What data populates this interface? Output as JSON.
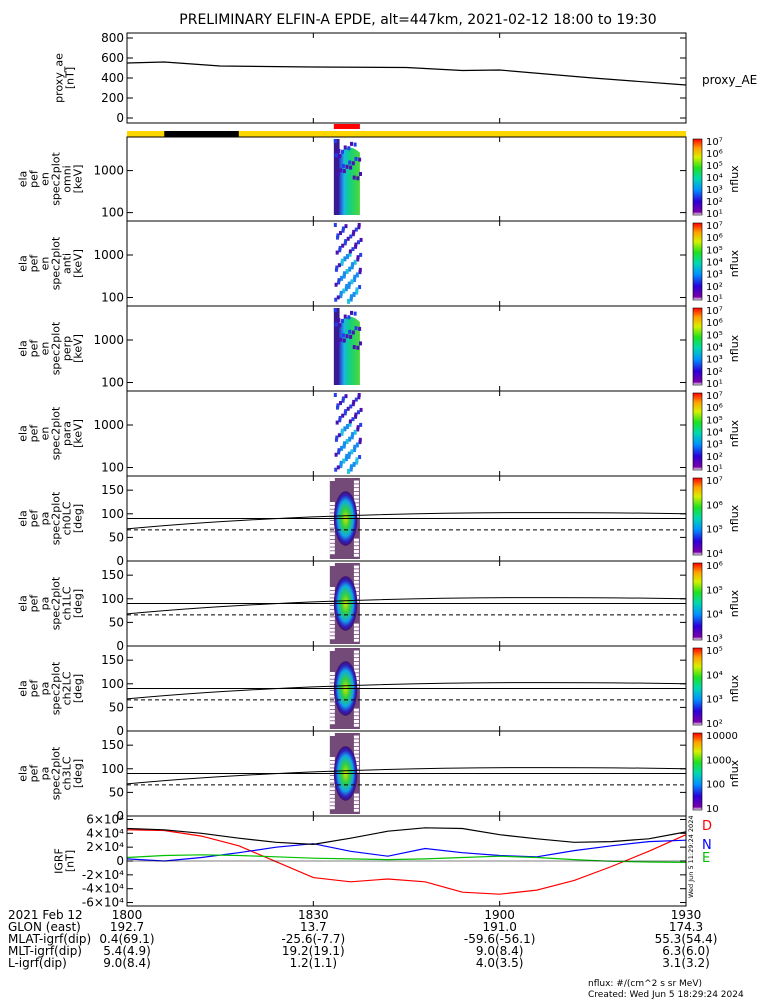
{
  "title": "PRELIMINARY ELFIN-A EPDE, alt=447km, 2021-02-12 18:00 to 19:30",
  "created": "Created: Wed Jun  5 18:29:24 2024",
  "rotated_timestamp": "Wed Jun  5 11:29:24 2024",
  "nflux_units": "nflux: #/(cm^2 s sr MeV)",
  "colors": {
    "sun_bar": "#ffd700",
    "shadow_bar": "#000000",
    "science_bar": "#ff0000",
    "solid": "#000000",
    "D": "#ff0000",
    "N": "#0000ff",
    "E": "#00c000"
  },
  "chart_data": [
    {
      "type": "line",
      "id": "proxy_ae",
      "ylabel_lines": [
        "proxy_ae",
        "[nT]"
      ],
      "legend": "proxy_AE",
      "yticks": [
        "0",
        "200",
        "400",
        "600",
        "800"
      ],
      "ylim": [
        -50,
        850
      ],
      "x_hours": [
        18.0,
        18.1,
        18.25,
        18.5,
        18.75,
        18.9,
        19.0,
        19.25,
        19.5
      ],
      "values": [
        550,
        560,
        520,
        510,
        505,
        475,
        480,
        400,
        330
      ]
    },
    {
      "type": "bar",
      "id": "state_bar",
      "segments": [
        {
          "state": "sunlight",
          "start": 18.0,
          "end": 19.5
        },
        {
          "state": "shadow",
          "start": 18.1,
          "end": 18.3
        },
        {
          "state": "science",
          "start": 18.555,
          "end": 18.625
        }
      ]
    },
    {
      "type": "heatmap",
      "id": "omni",
      "ylabel_lines": [
        "ela",
        "pef",
        "en",
        "spec2plot",
        "omni",
        "[keV]"
      ],
      "yticks": [
        "100",
        "1000"
      ],
      "zlabel": "nflux",
      "ztick_labels": [
        "10¹",
        "10²",
        "10³",
        "10⁴",
        "10⁵",
        "10⁶",
        "10⁷"
      ],
      "x_range": [
        18.555,
        18.625
      ],
      "pattern": "dense"
    },
    {
      "type": "heatmap",
      "id": "anti",
      "ylabel_lines": [
        "ela",
        "pef",
        "en",
        "spec2plot",
        "anti",
        "[keV]"
      ],
      "yticks": [
        "100",
        "1000"
      ],
      "zlabel": "nflux",
      "ztick_labels": [
        "10¹",
        "10²",
        "10³",
        "10⁴",
        "10⁵",
        "10⁶",
        "10⁷"
      ],
      "x_range": [
        18.555,
        18.625
      ],
      "pattern": "sparse"
    },
    {
      "type": "heatmap",
      "id": "perp",
      "ylabel_lines": [
        "ela",
        "pef",
        "en",
        "spec2plot",
        "perp",
        "[keV]"
      ],
      "yticks": [
        "100",
        "1000"
      ],
      "zlabel": "nflux",
      "ztick_labels": [
        "10¹",
        "10²",
        "10³",
        "10⁴",
        "10⁵",
        "10⁶",
        "10⁷"
      ],
      "x_range": [
        18.555,
        18.625
      ],
      "pattern": "dense"
    },
    {
      "type": "heatmap",
      "id": "para",
      "ylabel_lines": [
        "ela",
        "pef",
        "en",
        "spec2plot",
        "para",
        "[keV]"
      ],
      "yticks": [
        "100",
        "1000"
      ],
      "zlabel": "nflux",
      "ztick_labels": [
        "10¹",
        "10²",
        "10³",
        "10⁴",
        "10⁵",
        "10⁶",
        "10⁷"
      ],
      "x_range": [
        18.555,
        18.625
      ],
      "pattern": "sparse"
    },
    {
      "type": "heatmap",
      "id": "ch0",
      "ylabel_lines": [
        "ela",
        "pef",
        "pa",
        "spec2plot",
        "ch0LC",
        "[deg]"
      ],
      "yticks": [
        "0",
        "50",
        "100",
        "150"
      ],
      "zlabel": "nflux",
      "ztick_labels": [
        "10⁴",
        "10⁵",
        "10⁶",
        "10⁷"
      ],
      "x_range": [
        18.555,
        18.625
      ],
      "pattern": "pa"
    },
    {
      "type": "heatmap",
      "id": "ch1",
      "ylabel_lines": [
        "ela",
        "pef",
        "pa",
        "spec2plot",
        "ch1LC",
        "[deg]"
      ],
      "yticks": [
        "0",
        "50",
        "100",
        "150"
      ],
      "zlabel": "nflux",
      "ztick_labels": [
        "10³",
        "10⁴",
        "10⁵",
        "10⁶"
      ],
      "x_range": [
        18.555,
        18.625
      ],
      "pattern": "pa"
    },
    {
      "type": "heatmap",
      "id": "ch2",
      "ylabel_lines": [
        "ela",
        "pef",
        "pa",
        "spec2plot",
        "ch2LC",
        "[deg]"
      ],
      "yticks": [
        "0",
        "50",
        "100",
        "150"
      ],
      "zlabel": "nflux",
      "ztick_labels": [
        "10²",
        "10³",
        "10⁴",
        "10⁵"
      ],
      "x_range": [
        18.555,
        18.625
      ],
      "pattern": "pa"
    },
    {
      "type": "heatmap",
      "id": "ch3",
      "ylabel_lines": [
        "ela",
        "pef",
        "pa",
        "spec2plot",
        "ch3LC",
        "[deg]"
      ],
      "yticks": [
        "0",
        "50",
        "100",
        "150"
      ],
      "zlabel": "nflux",
      "ztick_labels": [
        "10",
        "100",
        "1000",
        "10000"
      ],
      "x_range": [
        18.555,
        18.625
      ],
      "pattern": "pa"
    },
    {
      "type": "line",
      "id": "igrf",
      "ylabel_lines": [
        "IGRF",
        "[nT]"
      ],
      "yticks": [
        "-6×10⁴",
        "-4×10⁴",
        "-2×10⁴",
        "0",
        "2×10⁴",
        "4×10⁴",
        "6×10⁴"
      ],
      "ylim": [
        -65000,
        65000
      ],
      "series": [
        {
          "name": "D",
          "x_hours": [
            18.0,
            18.1,
            18.2,
            18.3,
            18.4,
            18.5,
            18.6,
            18.7,
            18.8,
            18.9,
            19.0,
            19.1,
            19.2,
            19.3,
            19.4,
            19.5
          ],
          "values": [
            45000,
            44000,
            36000,
            22000,
            -1000,
            -24000,
            -30000,
            -26000,
            -30000,
            -45000,
            -48000,
            -42000,
            -28000,
            -8000,
            14000,
            38000
          ]
        },
        {
          "name": "N",
          "x_hours": [
            18.0,
            18.1,
            18.2,
            18.3,
            18.4,
            18.5,
            18.6,
            18.7,
            18.8,
            18.9,
            19.0,
            19.1,
            19.2,
            19.3,
            19.4,
            19.5
          ],
          "values": [
            3000,
            0,
            5000,
            12000,
            20000,
            25000,
            14000,
            7000,
            18000,
            12000,
            8000,
            6000,
            15000,
            22000,
            28000,
            30000
          ]
        },
        {
          "name": "E",
          "x_hours": [
            18.0,
            18.1,
            18.2,
            18.3,
            18.4,
            18.5,
            18.6,
            18.7,
            18.8,
            18.9,
            19.0,
            19.1,
            19.2,
            19.3,
            19.4,
            19.5
          ],
          "values": [
            5000,
            8000,
            9000,
            8000,
            6000,
            4000,
            3000,
            2000,
            3000,
            5000,
            7000,
            5000,
            2000,
            -500,
            -1500,
            -2000
          ]
        },
        {
          "x_hours": [
            18.0,
            18.1,
            18.2,
            18.3,
            18.4,
            18.5,
            18.6,
            18.7,
            18.8,
            18.9,
            19.0,
            19.1,
            19.2,
            19.3,
            19.4,
            19.5
          ],
          "values": [
            47000,
            45000,
            40000,
            33000,
            27000,
            24000,
            33000,
            43000,
            48000,
            47000,
            38000,
            32000,
            27000,
            28000,
            32000,
            42000
          ]
        }
      ]
    }
  ],
  "xaxis": {
    "range_hours": [
      18.0,
      19.5
    ],
    "tick_hours": [
      18.0,
      18.5,
      19.0,
      19.5
    ]
  },
  "orbit_table": {
    "labels": [
      "2021 Feb 12",
      "GLON (east)",
      "MLAT-igrf(dip)",
      "MLT-igrf(dip)",
      "L-igrf(dip)"
    ],
    "columns": [
      [
        "1800",
        "192.7",
        "0.4(69.1)",
        "5.4(4.9)",
        "9.0(8.4)"
      ],
      [
        "1830",
        "13.7",
        "-25.6(-7.7)",
        "19.2(19.1)",
        "1.2(1.1)"
      ],
      [
        "1900",
        "191.0",
        "-59.6(-56.1)",
        "9.0(8.4)",
        "4.0(3.5)"
      ],
      [
        "1930",
        "174.3",
        "55.3(54.4)",
        "6.3(6.0)",
        "3.1(3.2)"
      ]
    ]
  }
}
